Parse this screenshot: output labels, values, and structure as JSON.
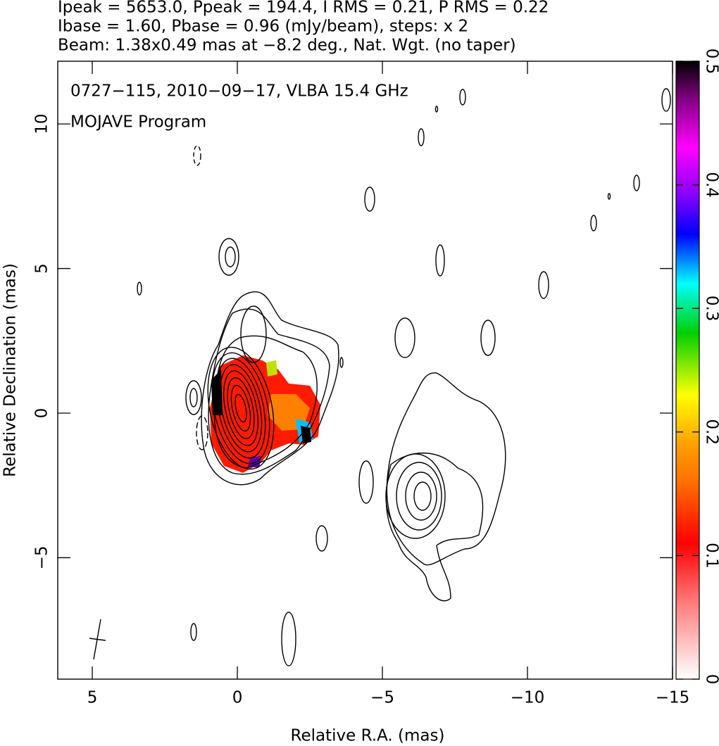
{
  "chart_data": {
    "type": "image",
    "title_lines": [
      "Ipeak = 5653.0, Ppeak = 194.4, I RMS = 0.21, P RMS = 0.22",
      "Ibase = 1.60, Pbase = 0.96 (mJy/beam), steps: x 2",
      "Beam: 1.38x0.49 mas at −8.2 deg., Nat. Wgt. (no taper)"
    ],
    "annotations": [
      "0727−115, 2010−09−17, VLBA 15.4 GHz",
      "MOJAVE Program"
    ],
    "xlabel": "Relative R.A. (mas)",
    "ylabel": "Relative Declination (mas)",
    "xlim": [
      6.19,
      -15
    ],
    "ylim": [
      -9.2,
      12.17
    ],
    "xticks": [
      5,
      0,
      {
        "value": -5,
        "label": "−5"
      },
      {
        "value": -10,
        "label": "−10"
      },
      {
        "value": -15,
        "label": "−15"
      }
    ],
    "yticks": [
      {
        "value": -5,
        "label": "−5"
      },
      0,
      5,
      10
    ],
    "colorbar": {
      "lim": [
        0,
        0.5
      ],
      "ticks": [
        0,
        0.1,
        0.2,
        0.3,
        0.4,
        0.5
      ]
    }
  }
}
